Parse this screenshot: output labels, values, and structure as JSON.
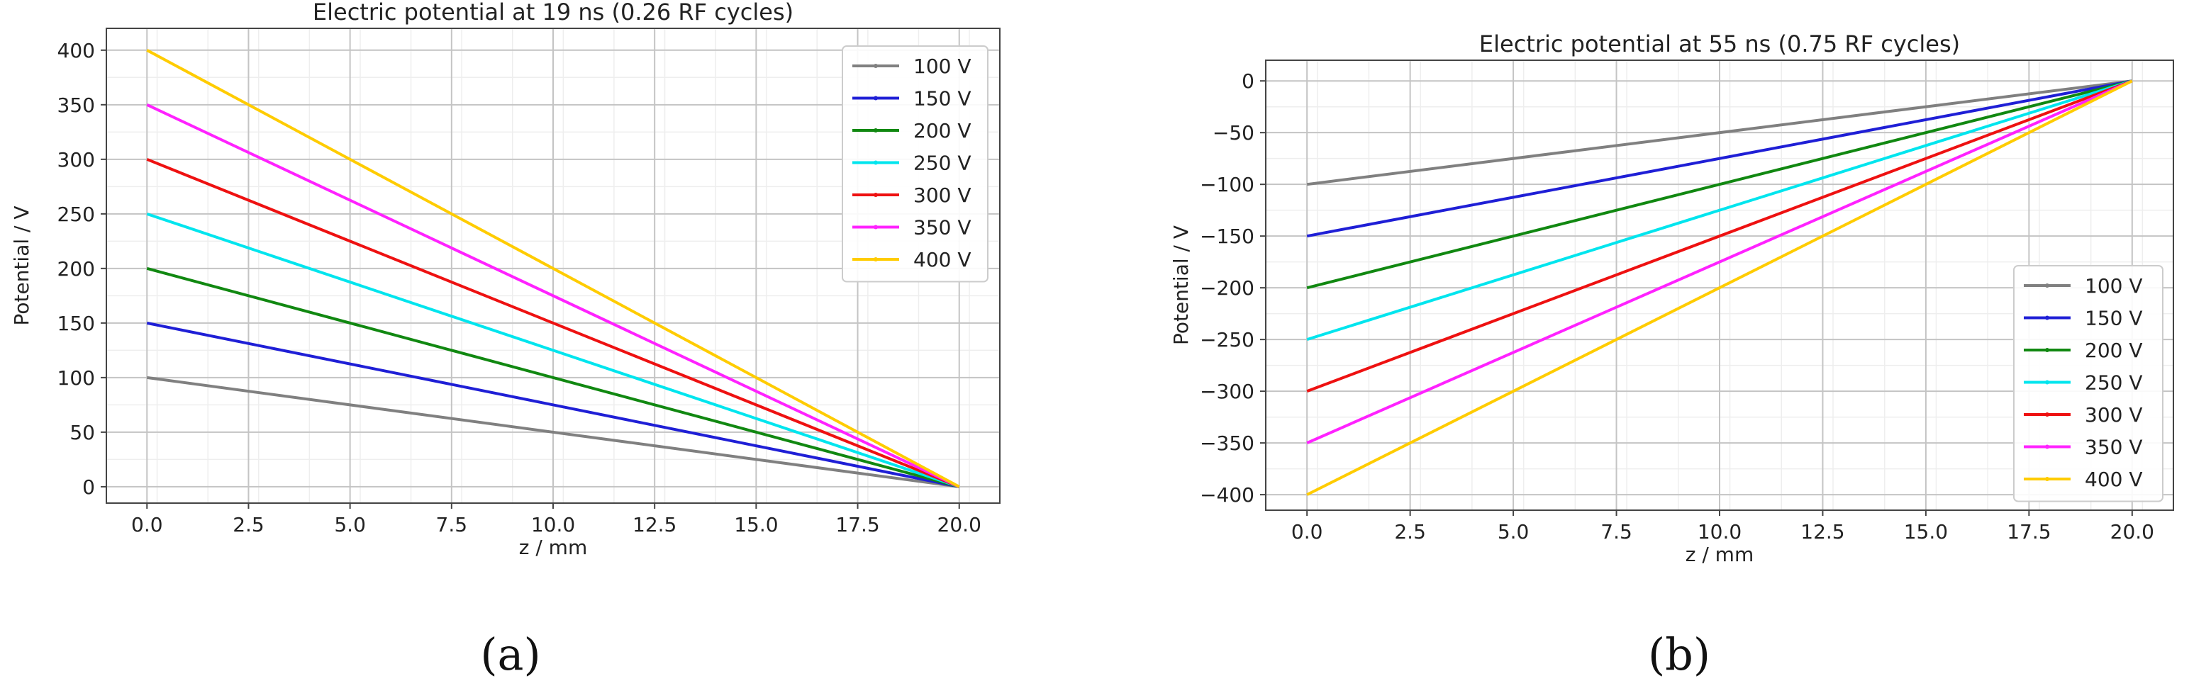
{
  "captions": {
    "a": "(a)",
    "b": "(b)"
  },
  "chart_data": [
    {
      "type": "line",
      "title": "Electric potential at 19 ns (0.26 RF cycles)",
      "xlabel": "z / mm",
      "ylabel": "Potential / V",
      "xlim": [
        -1,
        21
      ],
      "ylim": [
        -15,
        420
      ],
      "xticks": [
        0,
        2.5,
        5,
        7.5,
        10,
        12.5,
        15,
        17.5,
        20
      ],
      "xtick_labels": [
        "0.0",
        "2.5",
        "5.0",
        "7.5",
        "10.0",
        "12.5",
        "15.0",
        "17.5",
        "20.0"
      ],
      "yticks": [
        0,
        50,
        100,
        150,
        200,
        250,
        300,
        350,
        400
      ],
      "ytick_labels": [
        "0",
        "50",
        "100",
        "150",
        "200",
        "250",
        "300",
        "350",
        "400"
      ],
      "grid": true,
      "legend_position": "top-right",
      "series": [
        {
          "name": "100 V",
          "color": "#808080",
          "x": [
            0,
            20
          ],
          "values": [
            100,
            0
          ]
        },
        {
          "name": "150 V",
          "color": "#1f1fd6",
          "x": [
            0,
            20
          ],
          "values": [
            150,
            0
          ]
        },
        {
          "name": "200 V",
          "color": "#118811",
          "x": [
            0,
            20
          ],
          "values": [
            200,
            0
          ]
        },
        {
          "name": "250 V",
          "color": "#00e5ee",
          "x": [
            0,
            20
          ],
          "values": [
            250,
            0
          ]
        },
        {
          "name": "300 V",
          "color": "#ee1111",
          "x": [
            0,
            20
          ],
          "values": [
            300,
            0
          ]
        },
        {
          "name": "350 V",
          "color": "#ff22ff",
          "x": [
            0,
            20
          ],
          "values": [
            350,
            0
          ]
        },
        {
          "name": "400 V",
          "color": "#ffcc00",
          "x": [
            0,
            20
          ],
          "values": [
            400,
            0
          ]
        }
      ]
    },
    {
      "type": "line",
      "title": "Electric potential at 55 ns (0.75 RF cycles)",
      "xlabel": "z / mm",
      "ylabel": "Potential / V",
      "xlim": [
        -1,
        21
      ],
      "ylim": [
        -415,
        20
      ],
      "xticks": [
        0,
        2.5,
        5,
        7.5,
        10,
        12.5,
        15,
        17.5,
        20
      ],
      "xtick_labels": [
        "0.0",
        "2.5",
        "5.0",
        "7.5",
        "10.0",
        "12.5",
        "15.0",
        "17.5",
        "20.0"
      ],
      "yticks": [
        0,
        -50,
        -100,
        -150,
        -200,
        -250,
        -300,
        -350,
        -400
      ],
      "ytick_labels": [
        "0",
        "−50",
        "−100",
        "−150",
        "−200",
        "−250",
        "−300",
        "−350",
        "−400"
      ],
      "grid": true,
      "legend_position": "bottom-right",
      "series": [
        {
          "name": "100 V",
          "color": "#808080",
          "x": [
            0,
            20
          ],
          "values": [
            -100,
            0
          ]
        },
        {
          "name": "150 V",
          "color": "#1f1fd6",
          "x": [
            0,
            20
          ],
          "values": [
            -150,
            0
          ]
        },
        {
          "name": "200 V",
          "color": "#118811",
          "x": [
            0,
            20
          ],
          "values": [
            -200,
            0
          ]
        },
        {
          "name": "250 V",
          "color": "#00e5ee",
          "x": [
            0,
            20
          ],
          "values": [
            -250,
            0
          ]
        },
        {
          "name": "300 V",
          "color": "#ee1111",
          "x": [
            0,
            20
          ],
          "values": [
            -300,
            0
          ]
        },
        {
          "name": "350 V",
          "color": "#ff22ff",
          "x": [
            0,
            20
          ],
          "values": [
            -350,
            0
          ]
        },
        {
          "name": "400 V",
          "color": "#ffcc00",
          "x": [
            0,
            20
          ],
          "values": [
            -400,
            0
          ]
        }
      ]
    }
  ]
}
